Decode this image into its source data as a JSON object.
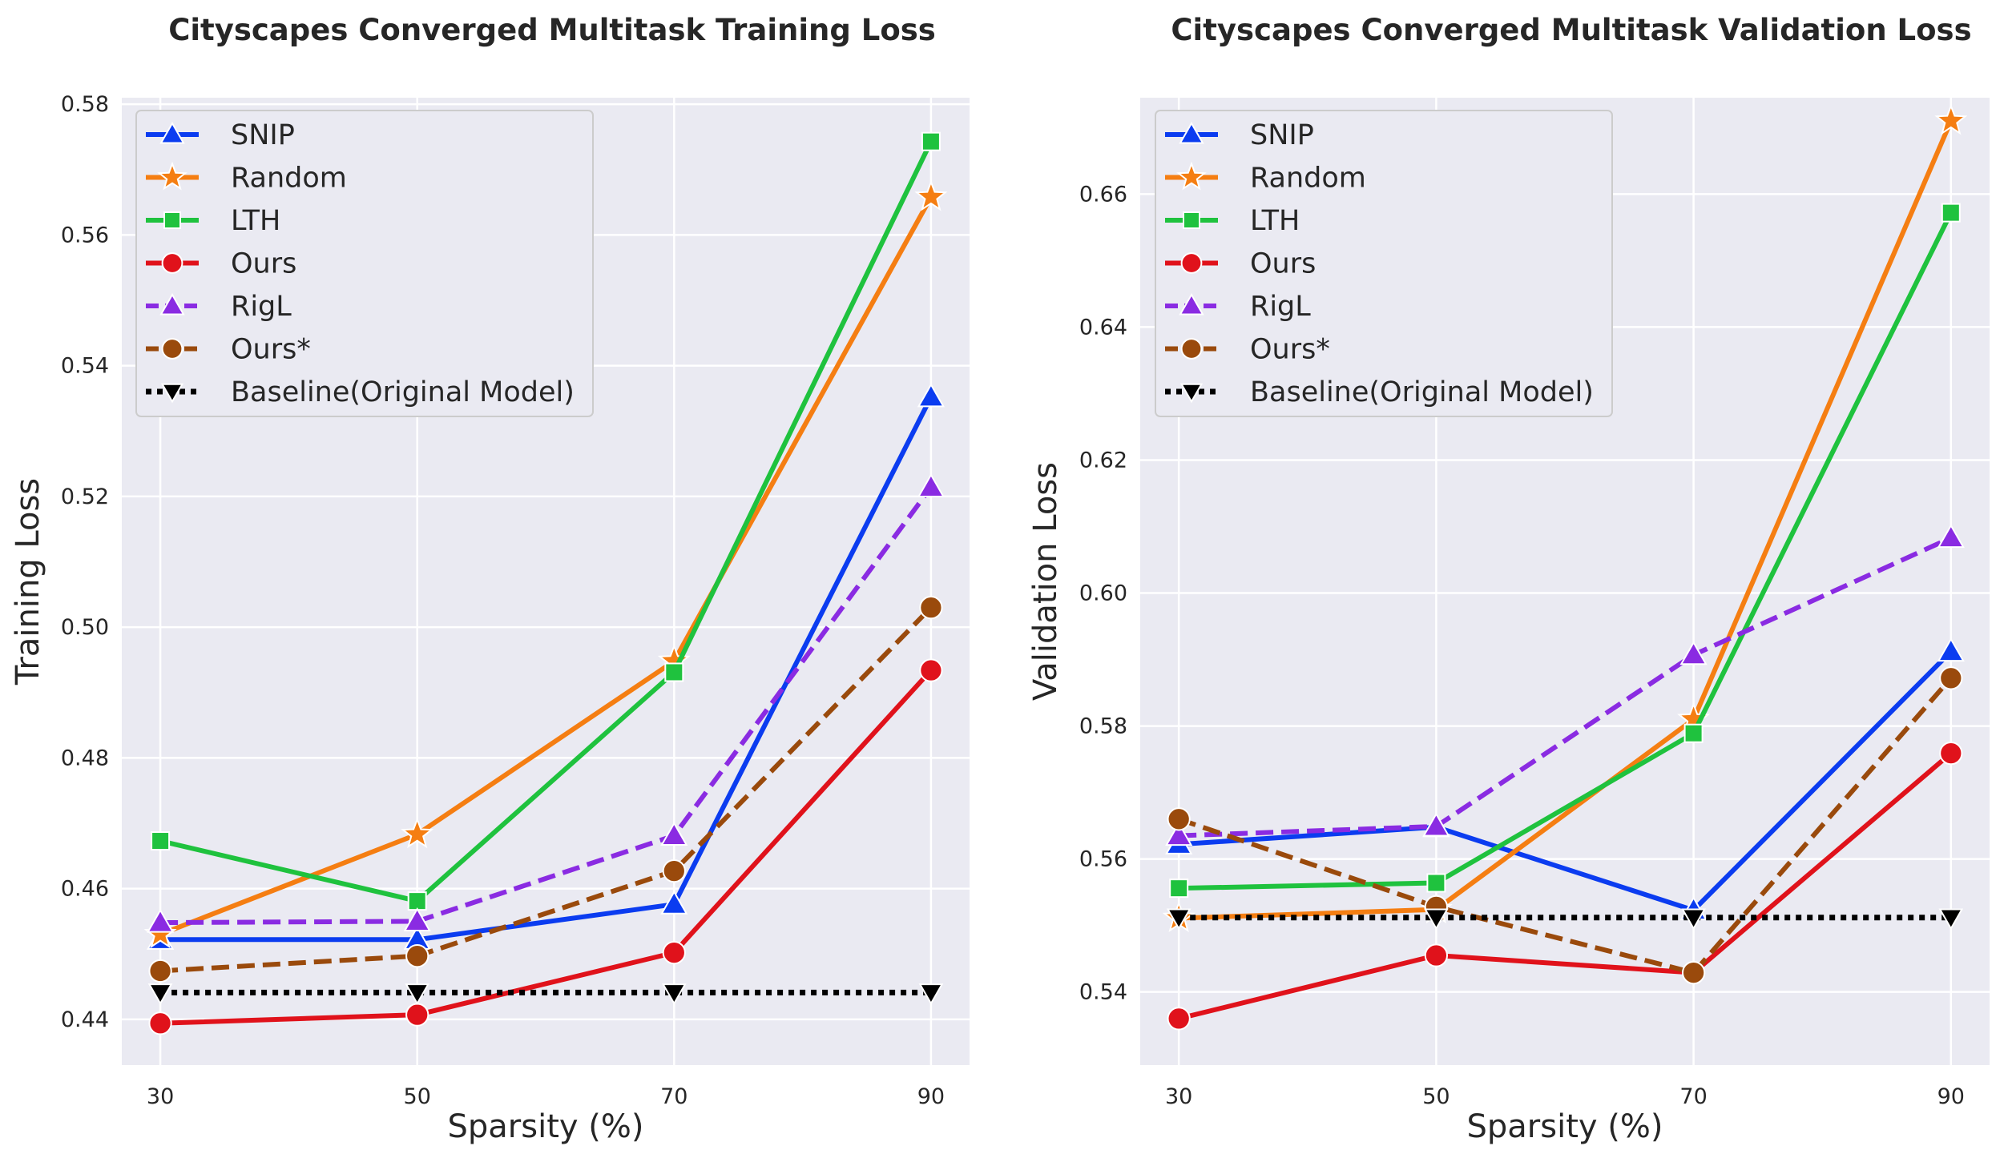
{
  "chart_data": [
    {
      "type": "line",
      "title": "Cityscapes Converged Multitask Training Loss",
      "xlabel": "Sparsity (%)",
      "ylabel": "Training Loss",
      "x": [
        30,
        50,
        70,
        90
      ],
      "xticks": [
        "30",
        "50",
        "70",
        "90"
      ],
      "yticks": [
        "0.44",
        "0.46",
        "0.48",
        "0.50",
        "0.52",
        "0.54",
        "0.56",
        "0.58"
      ],
      "ytick_values": [
        0.44,
        0.46,
        0.48,
        0.5,
        0.52,
        0.54,
        0.56,
        0.58
      ],
      "xlim": [
        27,
        93
      ],
      "ylim": [
        0.433,
        0.581
      ],
      "grid": true,
      "legend_position": "top-left",
      "series": [
        {
          "name": "SNIP",
          "values": [
            0.4522,
            0.4522,
            0.4576,
            0.5352
          ],
          "color": "#0b3cf0",
          "marker": "triangle-up",
          "dash": "solid"
        },
        {
          "name": "Random",
          "values": [
            0.453,
            0.4683,
            0.4948,
            0.5658
          ],
          "color": "#f57e12",
          "marker": "star",
          "dash": "solid"
        },
        {
          "name": "LTH",
          "values": [
            0.4673,
            0.4581,
            0.4931,
            0.5743
          ],
          "color": "#1fc23e",
          "marker": "square",
          "dash": "solid"
        },
        {
          "name": "Ours",
          "values": [
            0.4394,
            0.4407,
            0.4502,
            0.4934
          ],
          "color": "#e0121b",
          "marker": "circle",
          "dash": "solid"
        },
        {
          "name": "RigL",
          "values": [
            0.4548,
            0.455,
            0.4681,
            0.5214
          ],
          "color": "#8a2be2",
          "marker": "triangle-up",
          "dash": "dashed"
        },
        {
          "name": "Ours*",
          "values": [
            0.4474,
            0.4497,
            0.4627,
            0.503
          ],
          "color": "#9a4a0c",
          "marker": "circle",
          "dash": "dashed"
        },
        {
          "name": "Baseline(Original Model)",
          "values": [
            0.4441,
            0.4441,
            0.4441,
            0.4441
          ],
          "color": "#000000",
          "marker": "triangle-down",
          "dash": "dotted"
        }
      ]
    },
    {
      "type": "line",
      "title": "Cityscapes Converged Multitask Validation Loss",
      "xlabel": "Sparsity (%)",
      "ylabel": "Validation Loss",
      "x": [
        30,
        50,
        70,
        90
      ],
      "xticks": [
        "30",
        "50",
        "70",
        "90"
      ],
      "yticks": [
        "0.54",
        "0.56",
        "0.58",
        "0.60",
        "0.62",
        "0.64",
        "0.66"
      ],
      "ytick_values": [
        0.54,
        0.56,
        0.58,
        0.6,
        0.62,
        0.64,
        0.66
      ],
      "xlim": [
        27,
        93
      ],
      "ylim": [
        0.529,
        0.6745
      ],
      "grid": true,
      "legend_position": "top-left",
      "series": [
        {
          "name": "SNIP",
          "values": [
            0.5622,
            0.5648,
            0.5523,
            0.5912
          ],
          "color": "#0b3cf0",
          "marker": "triangle-up",
          "dash": "solid"
        },
        {
          "name": "Random",
          "values": [
            0.5511,
            0.5524,
            0.581,
            0.671
          ],
          "color": "#f57e12",
          "marker": "star",
          "dash": "solid"
        },
        {
          "name": "LTH",
          "values": [
            0.5556,
            0.5564,
            0.5789,
            0.6572
          ],
          "color": "#1fc23e",
          "marker": "square",
          "dash": "solid"
        },
        {
          "name": "Ours",
          "values": [
            0.536,
            0.5455,
            0.5429,
            0.5759
          ],
          "color": "#e0121b",
          "marker": "circle",
          "dash": "solid"
        },
        {
          "name": "RigL",
          "values": [
            0.5635,
            0.5649,
            0.5907,
            0.6083
          ],
          "color": "#8a2be2",
          "marker": "triangle-up",
          "dash": "dashed"
        },
        {
          "name": "Ours*",
          "values": [
            0.566,
            0.5528,
            0.5429,
            0.5872
          ],
          "color": "#9a4a0c",
          "marker": "circle",
          "dash": "dashed"
        },
        {
          "name": "Baseline(Original Model)",
          "values": [
            0.5512,
            0.5512,
            0.5512,
            0.5512
          ],
          "color": "#000000",
          "marker": "triangle-down",
          "dash": "dotted"
        }
      ]
    }
  ]
}
